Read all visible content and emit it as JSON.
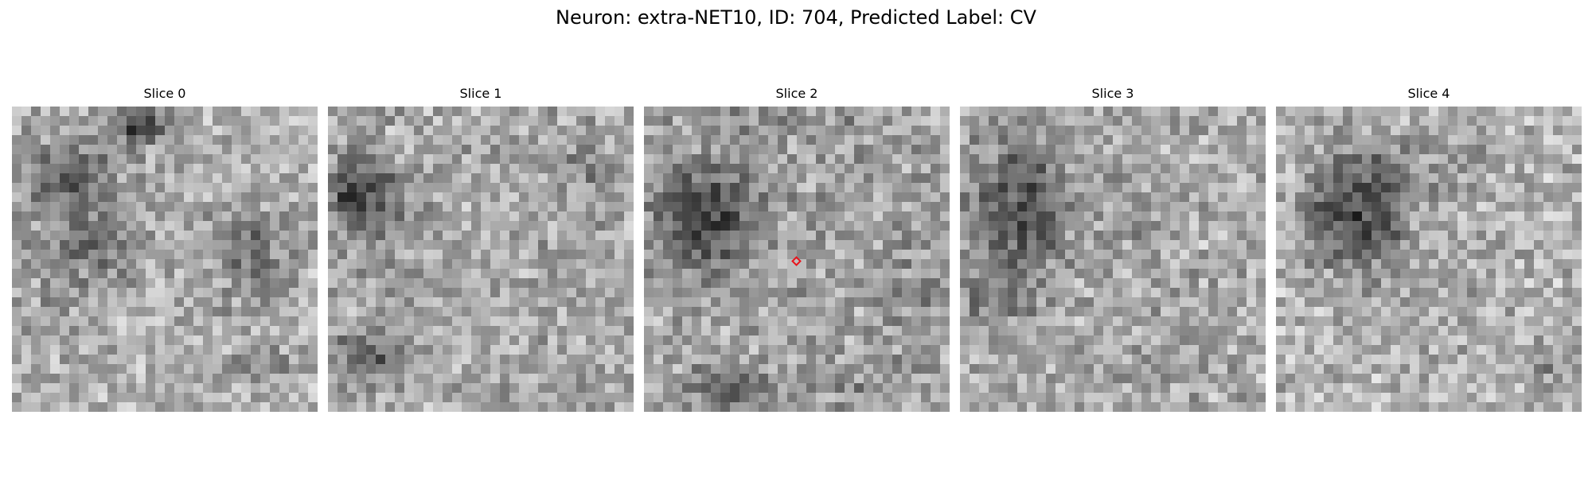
{
  "figure": {
    "title": "Neuron: extra-NET10, ID: 704, Predicted Label: CV"
  },
  "slices": [
    {
      "label": "Slice 0"
    },
    {
      "label": "Slice 1"
    },
    {
      "label": "Slice 2",
      "has_marker": true
    },
    {
      "label": "Slice 3"
    },
    {
      "label": "Slice 4"
    }
  ],
  "marker": {
    "color": "#e8141c",
    "shape": "diamond"
  },
  "image": {
    "colormap": "grayscale",
    "grid": [
      32,
      32
    ]
  }
}
